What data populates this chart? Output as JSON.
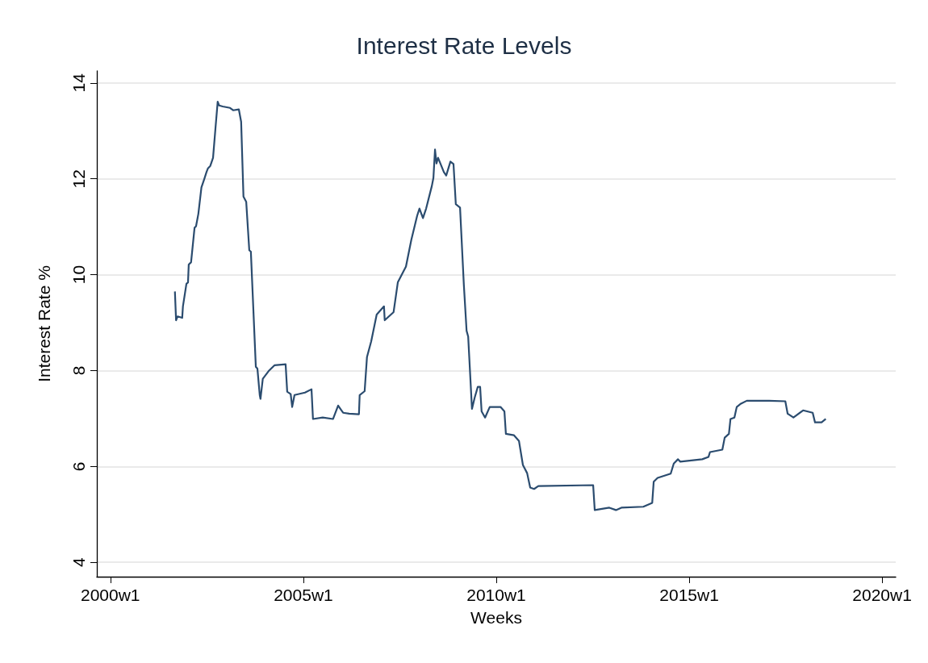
{
  "chart_data": {
    "type": "line",
    "title": "Interest Rate Levels",
    "xlabel": "Weeks",
    "ylabel": "Interest Rate %",
    "x": [
      "2001-09-03",
      "2001-09-14",
      "2001-09-28",
      "2001-11-11",
      "2001-11-18",
      "2001-12-21",
      "2002-01-05",
      "2002-01-12",
      "2002-02-03",
      "2002-03-08",
      "2002-03-22",
      "2002-04-13",
      "2002-05-12",
      "2002-06-07",
      "2002-06-29",
      "2002-07-13",
      "2002-08-04",
      "2002-08-30",
      "2002-09-21",
      "2002-10-13",
      "2002-10-27",
      "2002-11-29",
      "2003-02-07",
      "2003-03-08",
      "2003-05-01",
      "2003-05-23",
      "2003-06-14",
      "2003-07-10",
      "2003-08-08",
      "2003-08-23",
      "2003-10-09",
      "2003-10-24",
      "2003-11-15",
      "2003-11-22",
      "2003-12-14",
      "2004-02-07",
      "2004-04-02",
      "2004-07-17",
      "2004-08-01",
      "2004-09-03",
      "2004-09-17",
      "2004-10-09",
      "2005-01-16",
      "2005-03-19",
      "2005-04-02",
      "2005-07-03",
      "2005-10-09",
      "2005-11-26",
      "2006-01-12",
      "2006-03-11",
      "2006-06-11",
      "2006-06-18",
      "2006-08-04",
      "2006-08-26",
      "2006-10-05",
      "2006-11-26",
      "2007-02-03",
      "2007-02-10",
      "2007-05-05",
      "2007-06-14",
      "2007-08-30",
      "2007-10-20",
      "2007-12-14",
      "2008-01-05",
      "2008-02-07",
      "2008-03-08",
      "2008-05-01",
      "2008-05-16",
      "2008-05-31",
      "2008-06-14",
      "2008-06-29",
      "2008-08-23",
      "2008-09-14",
      "2008-10-24",
      "2008-11-22",
      "2008-12-14",
      "2009-01-23",
      "2009-02-28",
      "2009-03-26",
      "2009-04-10",
      "2009-05-16",
      "2009-06-11",
      "2009-07-10",
      "2009-08-01",
      "2009-08-15",
      "2009-09-17",
      "2009-10-31",
      "2010-02-10",
      "2010-03-19",
      "2010-04-02",
      "2010-06-18",
      "2010-08-04",
      "2010-09-10",
      "2010-10-20",
      "2010-11-18",
      "2010-12-25",
      "2011-02-03",
      "2012-07-06",
      "2012-07-21",
      "2012-12-06",
      "2013-02-07",
      "2013-03-30",
      "2013-10-24",
      "2014-01-16",
      "2014-01-30",
      "2014-03-08",
      "2014-07-10",
      "2014-08-08",
      "2014-09-17",
      "2014-10-09",
      "2015-05-05",
      "2015-07-03",
      "2015-07-17",
      "2015-11-11",
      "2015-12-03",
      "2016-01-12",
      "2016-01-27",
      "2016-03-04",
      "2016-03-26",
      "2016-05-05",
      "2016-06-29",
      "2017-01-27",
      "2017-06-29",
      "2017-07-21",
      "2017-09-14",
      "2017-12-14",
      "2018-03-15",
      "2018-04-06",
      "2018-06-07",
      "2018-07-17"
    ],
    "series": [
      {
        "color": "#2b4c6f",
        "values": [
          9.65,
          9.05,
          9.13,
          9.1,
          9.34,
          9.81,
          9.84,
          10.21,
          10.26,
          10.98,
          11.01,
          11.27,
          11.82,
          11.99,
          12.14,
          12.22,
          12.27,
          12.44,
          13.03,
          13.61,
          13.53,
          13.51,
          13.48,
          13.43,
          13.45,
          13.19,
          11.63,
          11.52,
          10.51,
          10.48,
          8.08,
          8.04,
          7.49,
          7.41,
          7.83,
          7.99,
          8.11,
          8.13,
          7.56,
          7.51,
          7.24,
          7.49,
          7.54,
          7.61,
          6.99,
          7.02,
          6.99,
          7.27,
          7.12,
          7.1,
          7.09,
          7.49,
          7.57,
          8.28,
          8.61,
          9.17,
          9.34,
          9.05,
          9.22,
          9.84,
          10.17,
          10.73,
          11.23,
          11.38,
          11.18,
          11.38,
          11.85,
          12.02,
          12.61,
          12.32,
          12.44,
          12.14,
          12.07,
          12.36,
          12.31,
          11.47,
          11.4,
          9.79,
          8.83,
          8.71,
          7.2,
          7.44,
          7.66,
          7.66,
          7.15,
          7.02,
          7.24,
          7.24,
          7.15,
          6.68,
          6.65,
          6.53,
          6.03,
          5.86,
          5.56,
          5.53,
          5.59,
          5.61,
          5.09,
          5.14,
          5.09,
          5.14,
          5.16,
          5.24,
          5.68,
          5.76,
          5.85,
          6.06,
          6.15,
          6.1,
          6.15,
          6.2,
          6.3,
          6.35,
          6.6,
          6.68,
          6.99,
          7.02,
          7.24,
          7.31,
          7.37,
          7.37,
          7.36,
          7.1,
          7.02,
          7.17,
          7.12,
          6.92,
          6.92,
          6.99
        ]
      }
    ],
    "xlim": [
      "1999-08-26",
      "2020-05-09"
    ],
    "xticks": [
      {
        "value": "2000-01-01",
        "label": "2000w1"
      },
      {
        "value": "2005-01-01",
        "label": "2005w1"
      },
      {
        "value": "2010-01-01",
        "label": "2010w1"
      },
      {
        "value": "2015-01-01",
        "label": "2015w1"
      },
      {
        "value": "2020-01-01",
        "label": "2020w1"
      }
    ],
    "ylim": [
      3.7,
      14.25
    ],
    "yticks": [
      4,
      6,
      8,
      10,
      12,
      14
    ],
    "grid": "y",
    "marker": "none",
    "line_style": "solid"
  }
}
